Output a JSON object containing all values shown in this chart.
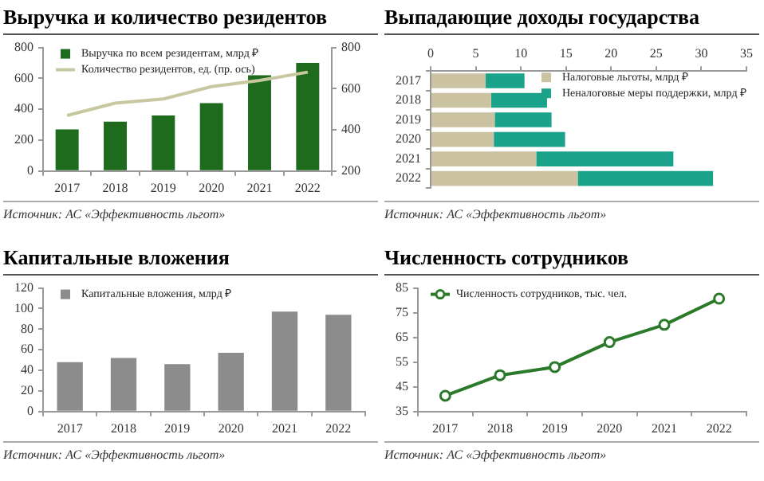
{
  "chart_data": [
    {
      "type": "bar",
      "title": "Выручка и количество резидентов",
      "categories": [
        "2017",
        "2018",
        "2019",
        "2020",
        "2021",
        "2022"
      ],
      "series": [
        {
          "name": "Выручка по всем резидентам, млрд ₽",
          "color": "#1e6b1e",
          "values": [
            270,
            320,
            360,
            440,
            620,
            700
          ]
        },
        {
          "name": "Количество резидентов, ед. (пр. ось)",
          "type": "line",
          "axis": "y2",
          "color": "#c8c8a0",
          "values": [
            470,
            530,
            550,
            610,
            640,
            680
          ]
        }
      ],
      "ylim": [
        0,
        800
      ],
      "yticks": [
        0,
        200,
        400,
        600,
        800
      ],
      "y2lim": [
        200,
        800
      ],
      "y2ticks": [
        200,
        400,
        600,
        800
      ],
      "legend": "top left",
      "marker": "none",
      "annotations": [
        "Источник: АС «Эффективность льгот»"
      ]
    },
    {
      "type": "bar",
      "title": "Выпадающие доходы государства",
      "orientation": "horizontal",
      "stacked": true,
      "categories": [
        "2017",
        "2018",
        "2019",
        "2020",
        "2021",
        "2022"
      ],
      "series": [
        {
          "name": "Налоговые льготы, млрд ₽",
          "color": "#cbc2a2",
          "values": [
            6.1,
            6.7,
            7.1,
            7.0,
            11.7,
            16.3
          ]
        },
        {
          "name": "Неналоговые меры поддержки, млрд ₽",
          "color": "#1aa38a",
          "values": [
            4.3,
            6.2,
            6.3,
            7.9,
            15.2,
            15.0
          ]
        }
      ],
      "xlim": [
        0,
        35
      ],
      "xticks": [
        0,
        5,
        10,
        15,
        20,
        25,
        30,
        35
      ],
      "legend": "top right",
      "annotations": [
        "Источник: АС «Эффективность льгот»"
      ]
    },
    {
      "type": "bar",
      "title": "Капитальные вложения",
      "categories": [
        "2017",
        "2018",
        "2019",
        "2020",
        "2021",
        "2022"
      ],
      "series": [
        {
          "name": "Капитальные вложения, млрд ₽",
          "color": "#8c8c8c",
          "values": [
            48,
            52,
            46,
            57,
            97,
            94
          ]
        }
      ],
      "ylim": [
        0,
        120
      ],
      "yticks": [
        0,
        20,
        40,
        60,
        80,
        100,
        120
      ],
      "legend": "top left",
      "annotations": [
        "Источник: АС «Эффективность льгот»"
      ]
    },
    {
      "type": "line",
      "title": "Численность сотрудников",
      "categories": [
        "2017",
        "2018",
        "2019",
        "2020",
        "2021",
        "2022"
      ],
      "series": [
        {
          "name": "Численность сотрудников, тыс. чел.",
          "color": "#2a7a2a",
          "values": [
            41.4,
            49.7,
            53.0,
            63.1,
            70.1,
            80.7
          ]
        }
      ],
      "ylim": [
        35,
        85
      ],
      "yticks": [
        35,
        45,
        55,
        65,
        75,
        85
      ],
      "legend": "top left",
      "marker": "circle",
      "line_style": "solid",
      "annotations": [
        "Источник: АС «Эффективность льгот»"
      ]
    }
  ]
}
